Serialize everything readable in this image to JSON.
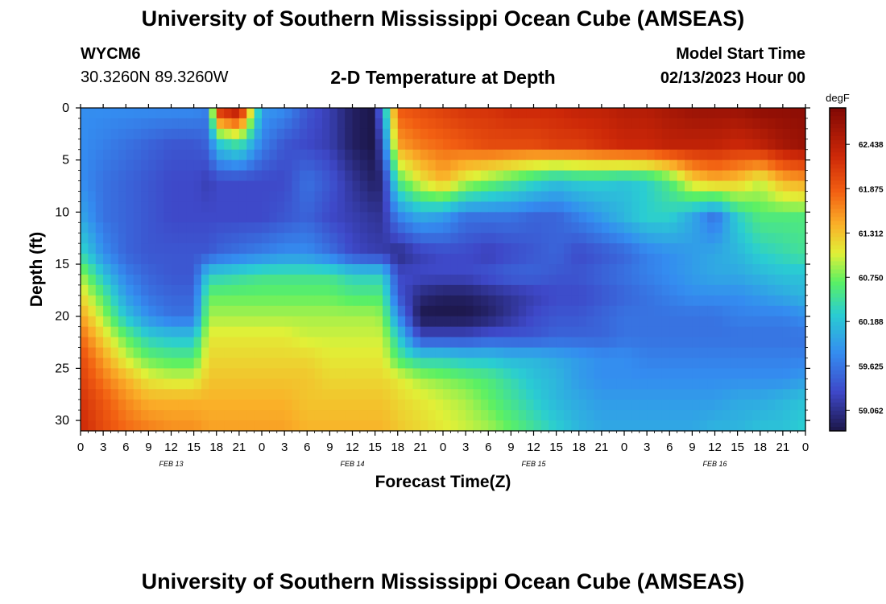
{
  "header": {
    "title": "University of Southern Mississippi Ocean Cube (AMSEAS)",
    "station_id": "WYCM6",
    "station_coords": "30.3260N  89.3260W",
    "subtitle": "2-D Temperature at Depth",
    "model_start_label": "Model Start Time",
    "model_start_value": "02/13/2023 Hour 00"
  },
  "footer": {
    "title": "University of Southern Mississippi Ocean Cube (AMSEAS)"
  },
  "chart_data": {
    "type": "heatmap",
    "title": "2-D Temperature at Depth",
    "xlabel": "Forecast Time(Z)",
    "ylabel": "Depth (ft)",
    "x_range_hours": [
      0,
      96
    ],
    "x_ticks_hours": [
      0,
      3,
      6,
      9,
      12,
      15,
      18,
      21,
      24,
      27,
      30,
      33,
      36,
      39,
      42,
      45,
      48,
      51,
      54,
      57,
      60,
      63,
      66,
      69,
      72,
      75,
      78,
      81,
      84,
      87,
      90,
      93,
      96
    ],
    "x_tick_labels": [
      "0",
      "3",
      "6",
      "9",
      "12",
      "15",
      "18",
      "21",
      "0",
      "3",
      "6",
      "9",
      "12",
      "15",
      "18",
      "21",
      "0",
      "3",
      "6",
      "9",
      "12",
      "15",
      "18",
      "21",
      "0",
      "3",
      "6",
      "9",
      "12",
      "15",
      "18",
      "21",
      "0"
    ],
    "date_labels": [
      {
        "hour": 12,
        "label": "FEB 13"
      },
      {
        "hour": 36,
        "label": "FEB 14"
      },
      {
        "hour": 60,
        "label": "FEB 15"
      },
      {
        "hour": 84,
        "label": "FEB 16"
      }
    ],
    "ylim": [
      31,
      0
    ],
    "y_ticks": [
      0,
      5,
      10,
      15,
      20,
      25,
      30
    ],
    "colorbar": {
      "units": "degF",
      "min": 58.8,
      "max": 62.9,
      "ticks": [
        "62.438",
        "61.875",
        "61.312",
        "60.750",
        "60.188",
        "59.625",
        "59.062"
      ]
    },
    "depths_ft": [
      0,
      3.5,
      7,
      10.5,
      14,
      16,
      18,
      20,
      22,
      24,
      26,
      28,
      31
    ],
    "time_hours": [
      0,
      3,
      6,
      9,
      12,
      15,
      17,
      18,
      21,
      24,
      27,
      30,
      33,
      36,
      39,
      40,
      42,
      45,
      48,
      51,
      54,
      57,
      60,
      63,
      66,
      69,
      72,
      75,
      78,
      81,
      84,
      87,
      90,
      93,
      96
    ],
    "temperature_degF": [
      [
        59.8,
        59.8,
        59.8,
        59.8,
        59.8,
        59.8,
        59.7,
        62.3,
        62.7,
        59.9,
        59.8,
        59.4,
        59.2,
        58.9,
        58.8,
        59.9,
        61.9,
        62.0,
        62.1,
        62.2,
        62.2,
        62.3,
        62.3,
        62.3,
        62.4,
        62.4,
        62.5,
        62.5,
        62.6,
        62.7,
        62.7,
        62.7,
        62.8,
        62.8,
        62.8
      ],
      [
        59.8,
        59.7,
        59.6,
        59.5,
        59.4,
        59.4,
        59.5,
        60.2,
        60.5,
        59.7,
        59.4,
        59.3,
        59.2,
        58.9,
        58.8,
        59.4,
        61.5,
        61.7,
        61.8,
        61.9,
        62.0,
        62.0,
        62.0,
        62.1,
        62.1,
        62.2,
        62.3,
        62.3,
        62.4,
        62.4,
        62.4,
        62.3,
        62.4,
        62.6,
        62.7
      ],
      [
        59.8,
        59.6,
        59.5,
        59.4,
        59.3,
        59.3,
        59.2,
        59.3,
        59.3,
        59.3,
        59.3,
        59.6,
        59.4,
        59.1,
        58.9,
        59.0,
        60.6,
        61.1,
        61.4,
        61.0,
        60.8,
        60.6,
        60.4,
        60.2,
        60.3,
        60.3,
        60.2,
        60.3,
        60.6,
        61.2,
        61.4,
        61.3,
        61.0,
        61.4,
        61.5
      ],
      [
        60.0,
        59.6,
        59.5,
        59.4,
        59.3,
        59.3,
        59.3,
        59.3,
        59.3,
        59.3,
        59.4,
        59.5,
        59.3,
        59.2,
        59.1,
        59.1,
        59.7,
        60.0,
        59.9,
        59.6,
        59.6,
        59.6,
        59.5,
        59.5,
        59.7,
        59.9,
        60.1,
        60.3,
        60.3,
        60.0,
        59.6,
        60.3,
        60.6,
        60.6,
        60.6
      ],
      [
        60.4,
        59.8,
        59.5,
        59.4,
        59.4,
        59.4,
        59.4,
        59.5,
        59.6,
        59.7,
        59.8,
        59.8,
        59.6,
        59.3,
        59.2,
        59.2,
        59.0,
        59.2,
        59.3,
        59.3,
        59.2,
        59.3,
        59.4,
        59.5,
        59.3,
        59.4,
        59.5,
        59.7,
        59.8,
        59.9,
        60.0,
        60.1,
        60.3,
        60.4,
        60.5
      ],
      [
        60.9,
        60.2,
        59.7,
        59.5,
        59.4,
        59.4,
        60.3,
        60.3,
        60.4,
        60.5,
        60.5,
        60.5,
        60.5,
        60.3,
        60.3,
        60.3,
        59.3,
        59.3,
        59.3,
        59.3,
        59.4,
        59.5,
        59.5,
        59.4,
        59.4,
        59.5,
        59.6,
        59.7,
        59.8,
        59.9,
        60.0,
        60.0,
        60.1,
        60.2,
        60.2
      ],
      [
        61.2,
        60.6,
        59.9,
        59.6,
        59.5,
        59.5,
        60.7,
        60.7,
        60.7,
        60.7,
        60.7,
        60.7,
        60.7,
        60.6,
        60.6,
        60.6,
        59.4,
        59.0,
        58.9,
        58.9,
        59.0,
        59.1,
        59.2,
        59.3,
        59.3,
        59.4,
        59.5,
        59.6,
        59.7,
        59.8,
        59.8,
        59.8,
        59.9,
        60.0,
        60.1
      ],
      [
        61.5,
        60.9,
        60.2,
        59.8,
        59.6,
        59.6,
        60.9,
        60.9,
        60.9,
        60.9,
        60.9,
        60.9,
        60.9,
        60.9,
        60.9,
        60.8,
        59.8,
        58.8,
        58.8,
        58.8,
        58.9,
        59.1,
        59.3,
        59.4,
        59.4,
        59.5,
        59.6,
        59.6,
        59.6,
        59.6,
        59.6,
        59.7,
        59.7,
        59.7,
        59.8
      ],
      [
        61.8,
        61.2,
        60.7,
        60.3,
        60.2,
        60.2,
        61.1,
        61.1,
        61.1,
        61.1,
        61.1,
        61.0,
        61.0,
        61.0,
        61.0,
        61.0,
        60.3,
        59.3,
        59.3,
        59.3,
        59.4,
        59.4,
        59.4,
        59.5,
        59.5,
        59.5,
        59.6,
        59.6,
        59.6,
        59.6,
        59.6,
        59.6,
        59.6,
        59.6,
        59.6
      ],
      [
        62.0,
        61.5,
        61.0,
        60.7,
        60.6,
        60.6,
        61.2,
        61.2,
        61.2,
        61.2,
        61.2,
        61.2,
        61.1,
        61.1,
        61.1,
        61.1,
        60.6,
        60.3,
        60.3,
        60.2,
        60.2,
        60.1,
        60.1,
        60.0,
        59.9,
        59.8,
        59.8,
        59.7,
        59.7,
        59.7,
        59.7,
        59.7,
        59.7,
        59.7,
        59.7
      ],
      [
        62.1,
        61.7,
        61.4,
        61.1,
        61.0,
        61.0,
        61.3,
        61.3,
        61.3,
        61.3,
        61.3,
        61.3,
        61.2,
        61.2,
        61.2,
        61.2,
        61.1,
        60.9,
        60.8,
        60.7,
        60.6,
        60.4,
        60.2,
        60.1,
        59.9,
        59.8,
        59.8,
        59.8,
        59.8,
        59.8,
        59.8,
        59.8,
        59.8,
        59.8,
        59.9
      ],
      [
        62.2,
        61.9,
        61.6,
        61.4,
        61.4,
        61.4,
        61.4,
        61.4,
        61.4,
        61.4,
        61.4,
        61.3,
        61.3,
        61.3,
        61.3,
        61.3,
        61.2,
        61.1,
        61.0,
        60.9,
        60.7,
        60.5,
        60.3,
        60.1,
        60.0,
        59.9,
        59.9,
        59.9,
        59.9,
        59.9,
        59.9,
        60.0,
        60.0,
        60.1,
        60.2
      ],
      [
        62.3,
        62.0,
        61.8,
        61.7,
        61.6,
        61.6,
        61.5,
        61.5,
        61.5,
        61.5,
        61.5,
        61.4,
        61.4,
        61.4,
        61.4,
        61.4,
        61.3,
        61.2,
        61.1,
        61.0,
        60.9,
        60.7,
        60.5,
        60.3,
        60.1,
        60.0,
        60.0,
        60.0,
        60.0,
        60.0,
        60.1,
        60.1,
        60.2,
        60.2,
        60.3
      ]
    ]
  }
}
